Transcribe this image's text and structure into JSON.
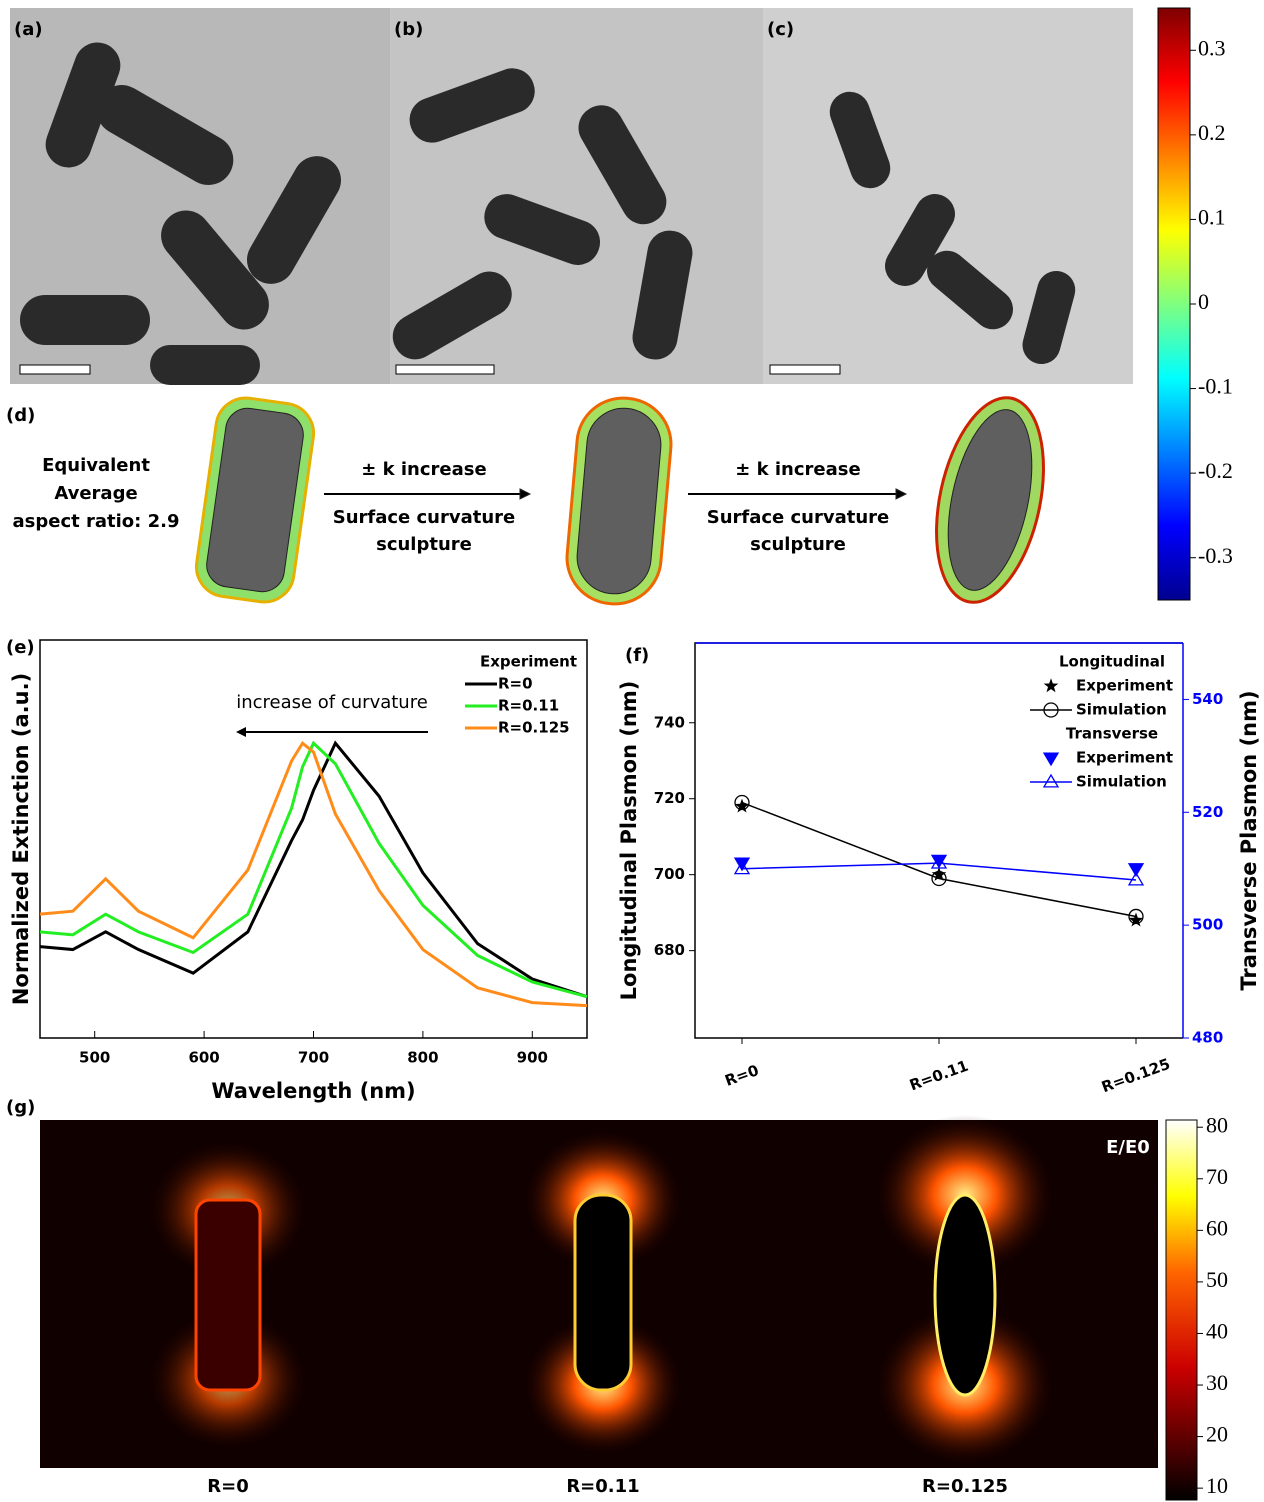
{
  "panels": {
    "a": "(a)",
    "b": "(b)",
    "c": "(c)",
    "d": "(d)",
    "e": "(e)",
    "f": "(f)",
    "g": "(g)"
  },
  "curvature_colorbar": {
    "lim": [
      -0.35,
      0.35
    ],
    "ticks": [
      0.3,
      0.2,
      0.1,
      0,
      -0.1,
      -0.2,
      -0.3
    ]
  },
  "diagram": {
    "aspect_lines": [
      "Equivalent",
      "Average",
      "aspect ratio: 2.9"
    ],
    "steps": [
      {
        "arrow_label": "± k increase",
        "caption": [
          "Surface curvature",
          "sculpture"
        ]
      },
      {
        "arrow_label": "± k increase",
        "caption": [
          "Surface curvature",
          "sculpture"
        ]
      }
    ]
  },
  "chart_data": [
    {
      "type": "line",
      "xlabel": "Wavelength (nm)",
      "ylabel": "Normalized Extinction (a.u.)",
      "x": [
        450,
        480,
        510,
        540,
        590,
        640,
        680,
        690,
        700,
        720,
        760,
        800,
        850,
        900,
        950
      ],
      "xlim": [
        450,
        950
      ],
      "xticks": [
        500,
        600,
        700,
        800,
        900
      ],
      "ylim": [
        0,
        1.35
      ],
      "legend_title": "Experiment",
      "annotation": "increase of curvature",
      "series": [
        {
          "name": "R=0",
          "color": "#000000",
          "values": [
            0.31,
            0.3,
            0.36,
            0.3,
            0.22,
            0.36,
            0.67,
            0.74,
            0.84,
            1.0,
            0.82,
            0.56,
            0.32,
            0.2,
            0.14
          ]
        },
        {
          "name": "R=0.11",
          "color": "#22ee22",
          "values": [
            0.36,
            0.35,
            0.42,
            0.36,
            0.29,
            0.42,
            0.78,
            0.92,
            1.0,
            0.93,
            0.66,
            0.45,
            0.28,
            0.19,
            0.14
          ]
        },
        {
          "name": "R=0.125",
          "color": "#ff8c1a",
          "values": [
            0.42,
            0.43,
            0.54,
            0.43,
            0.34,
            0.57,
            0.94,
            1.0,
            0.97,
            0.76,
            0.5,
            0.3,
            0.17,
            0.12,
            0.11
          ]
        }
      ]
    },
    {
      "type": "line",
      "ylabel": "Longitudinal Plasmon (nm)",
      "y2label": "Transverse Plasmon (nm)",
      "categories": [
        "R=0",
        "R=0.11",
        "R=0.125"
      ],
      "ylim": [
        657,
        761
      ],
      "yticks": [
        680,
        700,
        720,
        740
      ],
      "y2lim": [
        480,
        550
      ],
      "y2ticks": [
        480,
        500,
        520,
        540
      ],
      "y2color": "#0000ff",
      "legend_groups": [
        "Longitudinal",
        "Transverse"
      ],
      "series": [
        {
          "name": "Experiment",
          "color": "#000000",
          "marker": "star",
          "line": false,
          "values": [
            718,
            700,
            688
          ]
        },
        {
          "name": "Simulation",
          "color": "#000000",
          "marker": "circle",
          "line": true,
          "values": [
            719,
            699,
            689
          ]
        },
        {
          "name": "Experiment",
          "color": "#0000ff",
          "marker": "triangle-down",
          "line": false,
          "axis": "y2",
          "values": [
            511,
            511.5,
            510
          ]
        },
        {
          "name": "Simulation",
          "color": "#0000ff",
          "marker": "triangle-up",
          "line": true,
          "axis": "y2",
          "values": [
            510,
            511,
            508
          ]
        }
      ]
    }
  ],
  "field_map": {
    "title": "E/E0",
    "labels": [
      "R=0",
      "R=0.11",
      "R=0.125"
    ],
    "colorbar": {
      "lim": [
        7.7,
        81.4
      ],
      "ticks": [
        80,
        70,
        60,
        50,
        40,
        30,
        20,
        10
      ]
    }
  }
}
